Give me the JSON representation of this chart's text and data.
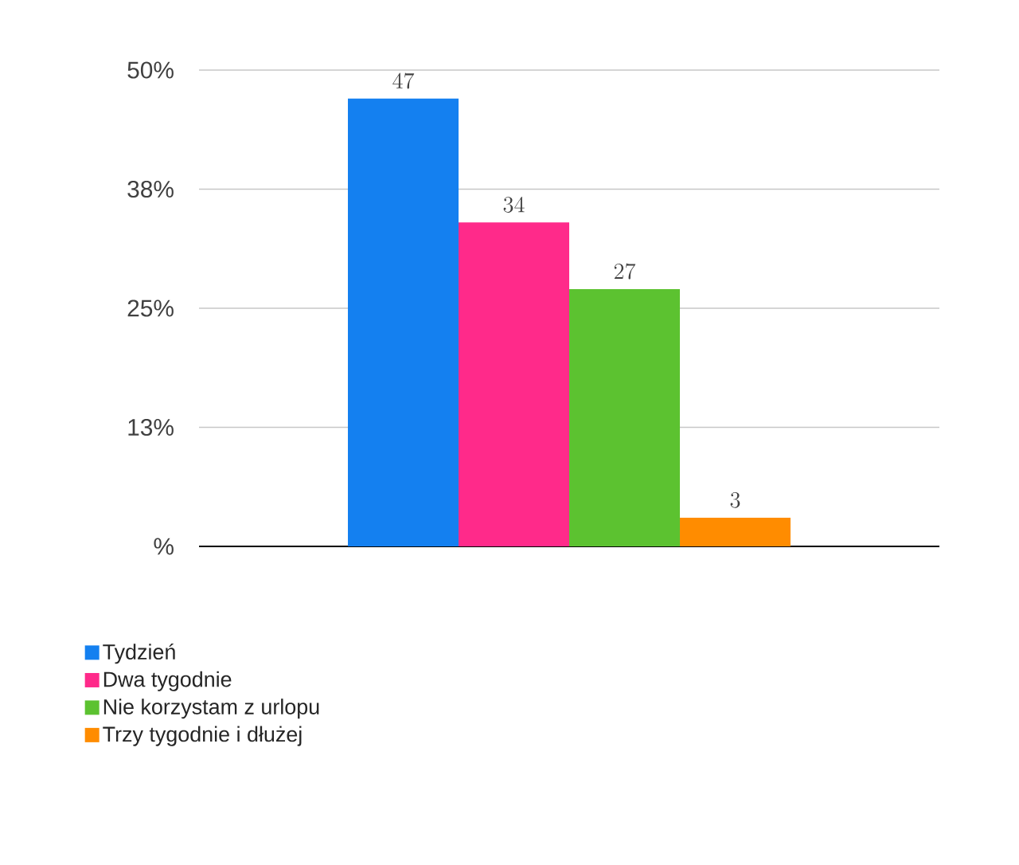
{
  "chart_data": {
    "type": "bar",
    "categories": [
      null
    ],
    "series": [
      {
        "name": "Tydzień",
        "color": "#1480f0",
        "values": [
          47
        ]
      },
      {
        "name": "Dwa tygodnie",
        "color": "#ff2a8a",
        "values": [
          34
        ]
      },
      {
        "name": "Nie korzystam z urlopu",
        "color": "#5cc230",
        "values": [
          27
        ]
      },
      {
        "name": "Trzy tygodnie i dłużej",
        "color": "#ff8c00",
        "values": [
          3
        ]
      }
    ],
    "ylim": [
      0,
      50
    ],
    "yticks": [
      {
        "value": 0,
        "label": "%"
      },
      {
        "value": 12.5,
        "label": "13%"
      },
      {
        "value": 25,
        "label": "25%"
      },
      {
        "value": 37.5,
        "label": "38%"
      },
      {
        "value": 50,
        "label": "50%"
      }
    ],
    "grid": "y",
    "data_labels": true,
    "legend": "bottom left"
  }
}
